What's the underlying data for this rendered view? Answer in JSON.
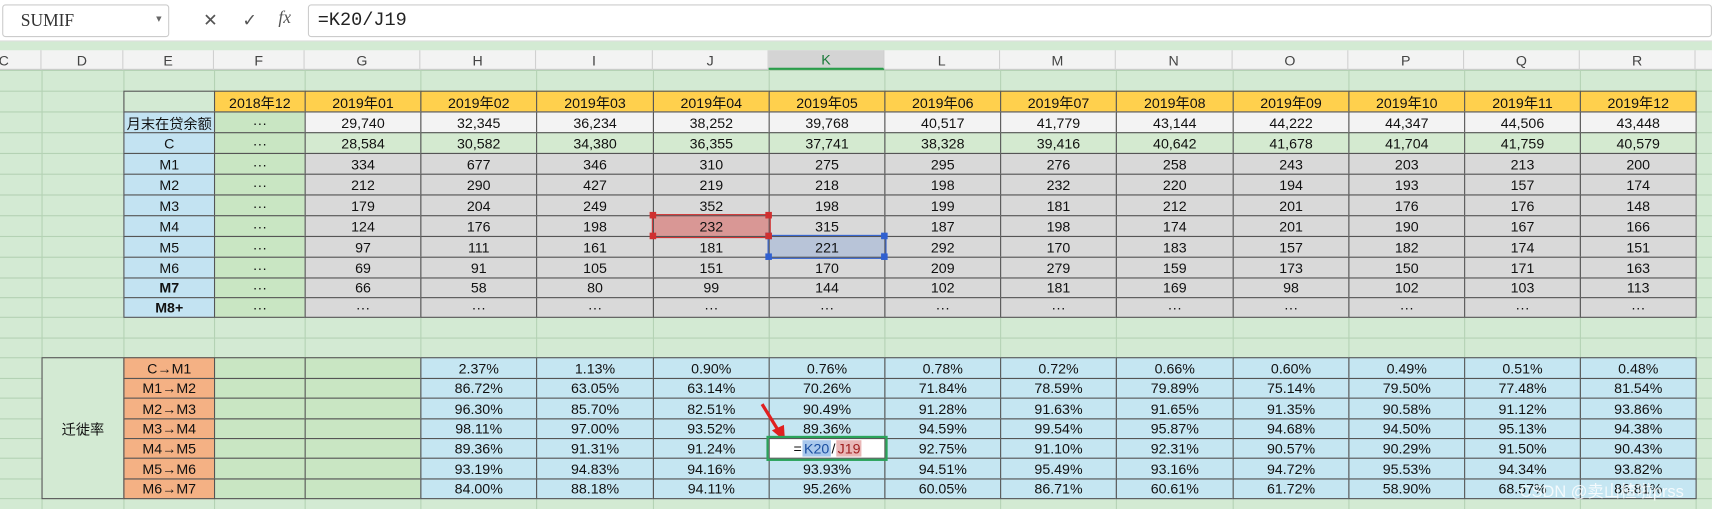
{
  "formula_bar": {
    "name_box": "SUMIF",
    "fx": "fx",
    "formula": "=K20/J19"
  },
  "columns": [
    "C",
    "D",
    "E",
    "F",
    "G",
    "H",
    "I",
    "J",
    "K",
    "L",
    "M",
    "N",
    "O",
    "P",
    "Q",
    "R"
  ],
  "table1": {
    "header": [
      "2018年12",
      "2019年01",
      "2019年02",
      "2019年03",
      "2019年04",
      "2019年05",
      "2019年06",
      "2019年07",
      "2019年08",
      "2019年09",
      "2019年10",
      "2019年11",
      "2019年12"
    ],
    "rows": [
      {
        "label": "月末在贷余额",
        "values": [
          "···",
          "29,740",
          "32,345",
          "36,234",
          "38,252",
          "39,768",
          "40,517",
          "41,779",
          "43,144",
          "44,222",
          "44,347",
          "44,506",
          "43,448"
        ]
      },
      {
        "label": "C",
        "values": [
          "···",
          "28,584",
          "30,582",
          "34,380",
          "36,355",
          "37,741",
          "38,328",
          "39,416",
          "40,642",
          "41,678",
          "41,704",
          "41,759",
          "40,579"
        ]
      },
      {
        "label": "M1",
        "values": [
          "···",
          "334",
          "677",
          "346",
          "310",
          "275",
          "295",
          "276",
          "258",
          "243",
          "203",
          "213",
          "200"
        ]
      },
      {
        "label": "M2",
        "values": [
          "···",
          "212",
          "290",
          "427",
          "219",
          "218",
          "198",
          "232",
          "220",
          "194",
          "193",
          "157",
          "174"
        ]
      },
      {
        "label": "M3",
        "values": [
          "···",
          "179",
          "204",
          "249",
          "352",
          "198",
          "199",
          "181",
          "212",
          "201",
          "176",
          "176",
          "148"
        ]
      },
      {
        "label": "M4",
        "values": [
          "···",
          "124",
          "176",
          "198",
          "232",
          "315",
          "187",
          "198",
          "174",
          "201",
          "190",
          "167",
          "166"
        ]
      },
      {
        "label": "M5",
        "values": [
          "···",
          "97",
          "111",
          "161",
          "181",
          "221",
          "292",
          "170",
          "183",
          "157",
          "182",
          "174",
          "151"
        ]
      },
      {
        "label": "M6",
        "values": [
          "···",
          "69",
          "91",
          "105",
          "151",
          "170",
          "209",
          "279",
          "159",
          "173",
          "150",
          "171",
          "163"
        ]
      },
      {
        "label": "M7",
        "values": [
          "···",
          "66",
          "58",
          "80",
          "99",
          "144",
          "102",
          "181",
          "169",
          "98",
          "102",
          "103",
          "113"
        ]
      },
      {
        "label": "M8+",
        "values": [
          "···",
          "···",
          "···",
          "···",
          "···",
          "···",
          "···",
          "···",
          "···",
          "···",
          "···",
          "···",
          "···"
        ]
      }
    ]
  },
  "table2": {
    "group": "迁徙率",
    "rows": [
      {
        "label": "C→M1",
        "values": [
          "2.37%",
          "1.13%",
          "0.90%",
          "0.76%",
          "0.78%",
          "0.72%",
          "0.66%",
          "0.60%",
          "0.49%",
          "0.51%",
          "0.48%"
        ]
      },
      {
        "label": "M1→M2",
        "values": [
          "86.72%",
          "63.05%",
          "63.14%",
          "70.26%",
          "71.84%",
          "78.59%",
          "79.89%",
          "75.14%",
          "79.50%",
          "77.48%",
          "81.54%"
        ]
      },
      {
        "label": "M2→M3",
        "values": [
          "96.30%",
          "85.70%",
          "82.51%",
          "90.49%",
          "91.28%",
          "91.63%",
          "91.65%",
          "91.35%",
          "90.58%",
          "91.12%",
          "93.86%"
        ]
      },
      {
        "label": "M3→M4",
        "values": [
          "98.11%",
          "97.00%",
          "93.52%",
          "89.36%",
          "94.59%",
          "99.54%",
          "95.87%",
          "94.68%",
          "94.50%",
          "95.13%",
          "94.38%"
        ]
      },
      {
        "label": "M4→M5",
        "values": [
          "89.36%",
          "91.31%",
          "91.24%",
          [
            "=",
            "K20",
            "/",
            "J19"
          ],
          "92.75%",
          "91.10%",
          "92.31%",
          "90.57%",
          "90.29%",
          "91.50%",
          "90.43%"
        ]
      },
      {
        "label": "M5→M6",
        "values": [
          "93.19%",
          "94.83%",
          "94.16%",
          "93.93%",
          "94.51%",
          "95.49%",
          "93.16%",
          "94.72%",
          "95.53%",
          "94.34%",
          "93.82%"
        ]
      },
      {
        "label": "M6→M7",
        "values": [
          "84.00%",
          "88.18%",
          "94.11%",
          "95.26%",
          "60.05%",
          "86.71%",
          "60.61%",
          "61.72%",
          "58.90%",
          "68.57%",
          "86.81%"
        ]
      }
    ]
  },
  "watermark": "CSDN @卖山楂啦prss"
}
